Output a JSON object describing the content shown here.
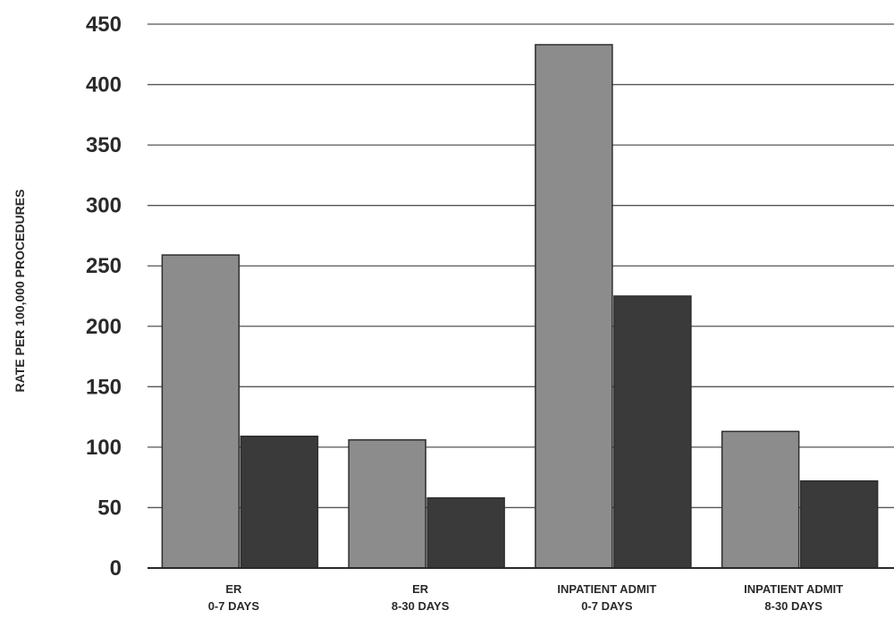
{
  "chart_data": {
    "type": "bar",
    "title": "",
    "xlabel": "",
    "ylabel": "RATE PER 100,000 PROCEDURES",
    "ylim": [
      0,
      450
    ],
    "yticks": [
      0,
      50,
      100,
      150,
      200,
      250,
      300,
      350,
      400,
      450
    ],
    "grid": true,
    "legend": "none",
    "categories": [
      [
        "ER",
        "0-7 DAYS"
      ],
      [
        "ER",
        "8-30 DAYS"
      ],
      [
        "INPATIENT ADMIT",
        "0-7 DAYS"
      ],
      [
        "INPATIENT ADMIT",
        "8-30 DAYS"
      ]
    ],
    "series": [
      {
        "values": [
          259,
          106,
          433,
          113
        ],
        "color": "#8c8c8c"
      },
      {
        "values": [
          109,
          58,
          225,
          72
        ],
        "color": "#3a3a3a"
      }
    ]
  }
}
